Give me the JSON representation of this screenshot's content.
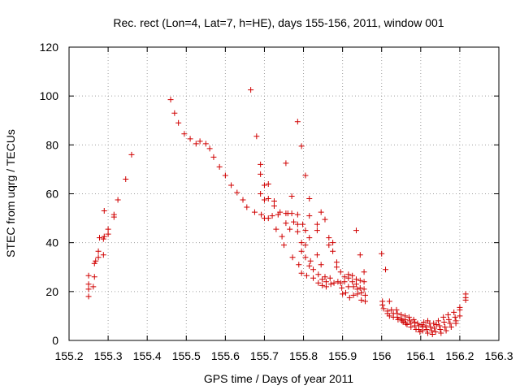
{
  "chart_data": {
    "type": "scatter",
    "title": "Rec. rect (Lon=4, Lat=7, h=HE), days 155-156, 2011, window 001",
    "xlabel": "GPS time / Days of year 2011",
    "ylabel": "STEC from uqrg / TECUs",
    "xlim": [
      155.2,
      156.3
    ],
    "ylim": [
      0,
      120
    ],
    "xticks": [
      155.2,
      155.3,
      155.4,
      155.5,
      155.6,
      155.7,
      155.8,
      155.9,
      156,
      156.1,
      156.2,
      156.3
    ],
    "xtick_labels": [
      "155.2",
      "155.3",
      "155.4",
      "155.5",
      "155.6",
      "155.7",
      "155.8",
      "155.9",
      "156",
      "156.1",
      "156.2",
      "156.3"
    ],
    "yticks": [
      0,
      20,
      40,
      60,
      80,
      100,
      120
    ],
    "ytick_labels": [
      "0",
      "20",
      "40",
      "60",
      "80",
      "100",
      "120"
    ],
    "grid": true,
    "marker": "+",
    "color": "#d00000",
    "series": [
      {
        "name": "STEC",
        "points": [
          [
            155.25,
            18
          ],
          [
            155.25,
            21
          ],
          [
            155.25,
            23
          ],
          [
            155.25,
            26.5
          ],
          [
            155.262,
            22
          ],
          [
            155.265,
            26
          ],
          [
            155.265,
            31.5
          ],
          [
            155.268,
            32.5
          ],
          [
            155.275,
            34
          ],
          [
            155.275,
            36.5
          ],
          [
            155.278,
            42
          ],
          [
            155.288,
            35
          ],
          [
            155.288,
            41.5
          ],
          [
            155.29,
            53
          ],
          [
            155.29,
            42.5
          ],
          [
            155.3,
            43.5
          ],
          [
            155.3,
            45.5
          ],
          [
            155.315,
            50.5
          ],
          [
            155.315,
            51.5
          ],
          [
            155.325,
            57.5
          ],
          [
            155.345,
            66
          ],
          [
            155.36,
            76
          ],
          [
            155.46,
            98.5
          ],
          [
            155.47,
            93
          ],
          [
            155.48,
            89
          ],
          [
            155.495,
            84.5
          ],
          [
            155.51,
            82.5
          ],
          [
            155.525,
            80.5
          ],
          [
            155.535,
            81.5
          ],
          [
            155.55,
            80.5
          ],
          [
            155.56,
            78.5
          ],
          [
            155.57,
            75
          ],
          [
            155.585,
            71
          ],
          [
            155.6,
            67.5
          ],
          [
            155.615,
            63.5
          ],
          [
            155.63,
            60.5
          ],
          [
            155.645,
            57.5
          ],
          [
            155.655,
            54.5
          ],
          [
            155.665,
            102.5
          ],
          [
            155.675,
            52.5
          ],
          [
            155.68,
            83.5
          ],
          [
            155.69,
            72
          ],
          [
            155.69,
            68
          ],
          [
            155.69,
            60
          ],
          [
            155.692,
            51.5
          ],
          [
            155.7,
            63.5
          ],
          [
            155.7,
            57.5
          ],
          [
            155.7,
            50
          ],
          [
            155.71,
            64
          ],
          [
            155.71,
            58
          ],
          [
            155.71,
            50
          ],
          [
            155.72,
            51
          ],
          [
            155.725,
            57
          ],
          [
            155.725,
            55
          ],
          [
            155.73,
            45.5
          ],
          [
            155.735,
            51.5
          ],
          [
            155.74,
            52.5
          ],
          [
            155.745,
            42.5
          ],
          [
            155.75,
            39
          ],
          [
            155.755,
            72.5
          ],
          [
            155.755,
            52
          ],
          [
            155.755,
            48
          ],
          [
            155.76,
            52
          ],
          [
            155.765,
            45.5
          ],
          [
            155.77,
            59
          ],
          [
            155.77,
            52
          ],
          [
            155.772,
            34
          ],
          [
            155.775,
            48.5
          ],
          [
            155.785,
            89.5
          ],
          [
            155.785,
            51.5
          ],
          [
            155.785,
            47.5
          ],
          [
            155.785,
            44.5
          ],
          [
            155.788,
            31
          ],
          [
            155.795,
            79.5
          ],
          [
            155.795,
            40
          ],
          [
            155.795,
            36.5
          ],
          [
            155.795,
            27.5
          ],
          [
            155.798,
            47.5
          ],
          [
            155.805,
            67.5
          ],
          [
            155.805,
            45
          ],
          [
            155.805,
            39
          ],
          [
            155.805,
            34
          ],
          [
            155.808,
            26.5
          ],
          [
            155.815,
            58
          ],
          [
            155.815,
            51
          ],
          [
            155.815,
            42
          ],
          [
            155.815,
            30.5
          ],
          [
            155.818,
            32.5
          ],
          [
            155.825,
            29
          ],
          [
            155.825,
            25.5
          ],
          [
            155.835,
            47.5
          ],
          [
            155.835,
            45
          ],
          [
            155.835,
            35
          ],
          [
            155.838,
            27
          ],
          [
            155.838,
            23.5
          ],
          [
            155.845,
            52.5
          ],
          [
            155.845,
            31
          ],
          [
            155.848,
            25
          ],
          [
            155.848,
            22.5
          ],
          [
            155.855,
            49.5
          ],
          [
            155.855,
            26
          ],
          [
            155.858,
            24
          ],
          [
            155.858,
            22
          ],
          [
            155.865,
            42
          ],
          [
            155.865,
            39
          ],
          [
            155.868,
            25.5
          ],
          [
            155.87,
            23
          ],
          [
            155.875,
            40
          ],
          [
            155.875,
            36.5
          ],
          [
            155.878,
            23.5
          ],
          [
            155.885,
            32
          ],
          [
            155.885,
            30
          ],
          [
            155.888,
            24
          ],
          [
            155.895,
            28
          ],
          [
            155.895,
            23.5
          ],
          [
            155.898,
            21.5
          ],
          [
            155.9,
            19
          ],
          [
            155.905,
            26
          ],
          [
            155.905,
            24
          ],
          [
            155.908,
            19.5
          ],
          [
            155.915,
            27
          ],
          [
            155.915,
            25.5
          ],
          [
            155.915,
            22
          ],
          [
            155.918,
            17.5
          ],
          [
            155.925,
            26.5
          ],
          [
            155.925,
            24
          ],
          [
            155.928,
            22
          ],
          [
            155.928,
            18.5
          ],
          [
            155.935,
            45
          ],
          [
            155.935,
            25
          ],
          [
            155.935,
            23
          ],
          [
            155.938,
            21
          ],
          [
            155.938,
            19
          ],
          [
            155.945,
            35
          ],
          [
            155.945,
            24.5
          ],
          [
            155.945,
            21.5
          ],
          [
            155.948,
            19.5
          ],
          [
            155.948,
            16.5
          ],
          [
            155.955,
            28
          ],
          [
            155.955,
            24
          ],
          [
            155.955,
            21
          ],
          [
            155.958,
            18.5
          ],
          [
            155.958,
            16
          ],
          [
            156,
            35.5
          ],
          [
            156.002,
            16
          ],
          [
            156.002,
            14.5
          ],
          [
            156.005,
            13
          ],
          [
            156.01,
            29
          ],
          [
            156.015,
            12
          ],
          [
            156.015,
            11
          ],
          [
            156.02,
            10
          ],
          [
            156.02,
            16
          ],
          [
            156.025,
            12.5
          ],
          [
            156.03,
            11
          ],
          [
            156.03,
            9.5
          ],
          [
            156.038,
            12.5
          ],
          [
            156.04,
            11
          ],
          [
            156.04,
            9.5
          ],
          [
            156.042,
            8.5
          ],
          [
            156.05,
            10.5
          ],
          [
            156.05,
            9
          ],
          [
            156.052,
            8
          ],
          [
            156.055,
            7.5
          ],
          [
            156.06,
            10
          ],
          [
            156.06,
            8.5
          ],
          [
            156.062,
            7
          ],
          [
            156.065,
            6.5
          ],
          [
            156.07,
            9.5
          ],
          [
            156.072,
            8
          ],
          [
            156.075,
            7
          ],
          [
            156.075,
            5.5
          ],
          [
            156.082,
            8.5
          ],
          [
            156.085,
            7.5
          ],
          [
            156.085,
            6
          ],
          [
            156.088,
            4.5
          ],
          [
            156.092,
            7
          ],
          [
            156.095,
            6
          ],
          [
            156.095,
            4.5
          ],
          [
            156.098,
            3.5
          ],
          [
            156.103,
            6.5
          ],
          [
            156.105,
            5.5
          ],
          [
            156.105,
            4
          ],
          [
            156.108,
            7.5
          ],
          [
            156.113,
            6
          ],
          [
            156.115,
            4.5
          ],
          [
            156.118,
            3
          ],
          [
            156.118,
            8
          ],
          [
            156.123,
            7
          ],
          [
            156.125,
            5.5
          ],
          [
            156.128,
            4
          ],
          [
            156.13,
            2.5
          ],
          [
            156.133,
            7
          ],
          [
            156.135,
            5
          ],
          [
            156.138,
            3.5
          ],
          [
            156.14,
            6.5
          ],
          [
            156.145,
            8
          ],
          [
            156.148,
            6
          ],
          [
            156.15,
            4.5
          ],
          [
            156.152,
            3
          ],
          [
            156.158,
            9.5
          ],
          [
            156.16,
            7.5
          ],
          [
            156.162,
            5.5
          ],
          [
            156.165,
            4
          ],
          [
            156.17,
            10.5
          ],
          [
            156.172,
            8.5
          ],
          [
            156.175,
            7
          ],
          [
            156.178,
            5.5
          ],
          [
            156.185,
            11.5
          ],
          [
            156.188,
            9.5
          ],
          [
            156.19,
            8
          ],
          [
            156.19,
            7
          ],
          [
            156.2,
            12.5
          ],
          [
            156.2,
            13.5
          ],
          [
            156.2,
            10
          ],
          [
            156.215,
            16.5
          ],
          [
            156.215,
            17.5
          ],
          [
            156.215,
            19
          ]
        ]
      }
    ]
  }
}
